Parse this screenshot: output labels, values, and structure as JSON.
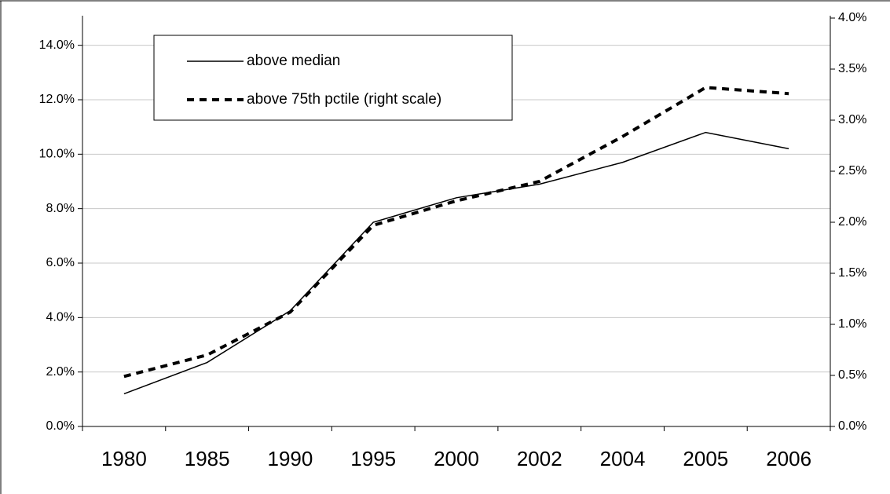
{
  "chart_data": {
    "type": "line",
    "categories": [
      "1980",
      "1985",
      "1990",
      "1995",
      "2000",
      "2002",
      "2004",
      "2005",
      "2006"
    ],
    "series": [
      {
        "name": "above median",
        "color": "#000000",
        "dashed": false,
        "values": [
          1.2,
          2.35,
          4.25,
          7.5,
          8.4,
          8.9,
          9.7,
          10.8,
          10.2
        ]
      },
      {
        "name": "above 75th pctile (right scale)",
        "color": "#000000",
        "dashed": true,
        "axis": "y2",
        "values": [
          0.49,
          0.7,
          1.12,
          1.97,
          2.21,
          2.4,
          2.84,
          3.32,
          3.26
        ]
      }
    ],
    "ylim": [
      0,
      15
    ],
    "yticks": [
      {
        "value": 0,
        "label": "0.0%"
      },
      {
        "value": 2,
        "label": "2.0%"
      },
      {
        "value": 4,
        "label": "4.0%"
      },
      {
        "value": 6,
        "label": "6.0%"
      },
      {
        "value": 8,
        "label": "8.0%"
      },
      {
        "value": 10,
        "label": "10.0%"
      },
      {
        "value": 12,
        "label": "12.0%"
      },
      {
        "value": 14,
        "label": "14.0%"
      }
    ],
    "y2lim": [
      0,
      4
    ],
    "y2ticks": [
      {
        "value": 0,
        "label": "0.0%"
      },
      {
        "value": 0.5,
        "label": "0.5%"
      },
      {
        "value": 1,
        "label": "1.0%"
      },
      {
        "value": 1.5,
        "label": "1.5%"
      },
      {
        "value": 2,
        "label": "2.0%"
      },
      {
        "value": 2.5,
        "label": "2.5%"
      },
      {
        "value": 3,
        "label": "3.0%"
      },
      {
        "value": 3.5,
        "label": "3.5%"
      },
      {
        "value": 4,
        "label": "4.0%"
      }
    ],
    "grid": true
  }
}
